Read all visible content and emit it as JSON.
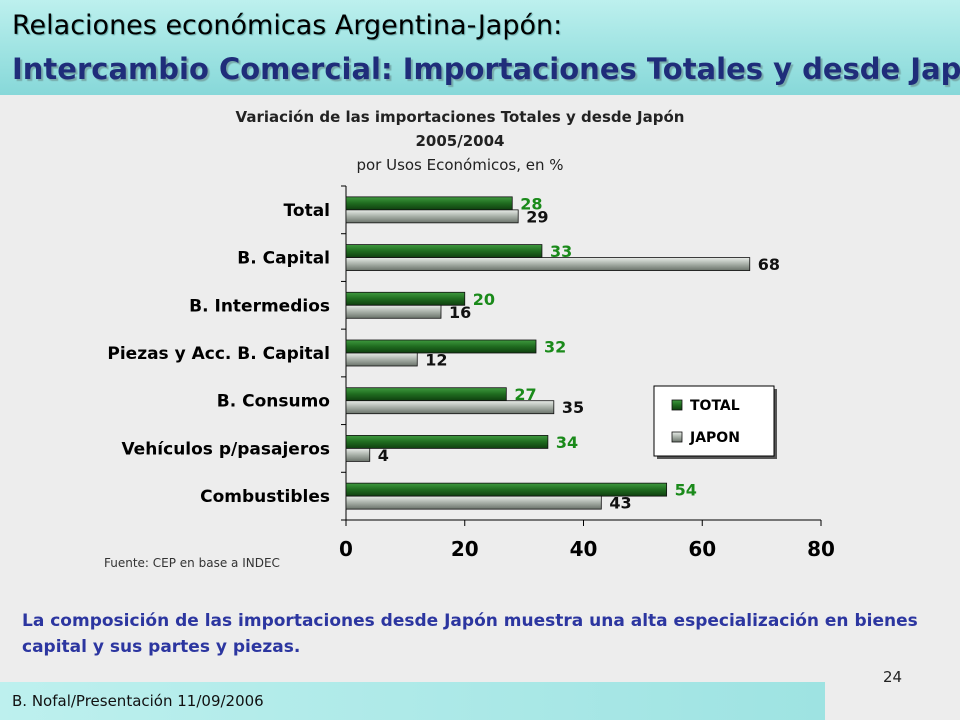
{
  "slide": {
    "title": "Relaciones económicas Argentina-Japón:",
    "subtitle": "Intercambio Comercial: Importaciones Totales y desde Japón",
    "source": "Fuente: CEP en base a INDEC",
    "body": "La composición de las importaciones desde Japón muestra una alta especialización en bienes capital y sus partes y piezas.",
    "page_number": "24",
    "footer": "B. Nofal/Presentación 11/09/2006"
  },
  "chart_data": {
    "type": "bar",
    "orientation": "horizontal",
    "title": "Variación de las importaciones Totales y desde Japón",
    "title_line2": "2005/2004",
    "subtitle": "por Usos Económicos, en %",
    "categories": [
      "Total",
      "B. Capital",
      "B. Intermedios",
      "Piezas y Acc. B. Capital",
      "B. Consumo",
      "Vehículos p/pasajeros",
      "Combustibles"
    ],
    "series": [
      {
        "name": "TOTAL",
        "values": [
          28,
          33,
          20,
          32,
          27,
          34,
          54
        ],
        "color": "#1f6b1f",
        "label_color": "#1a8a1a"
      },
      {
        "name": "JAPON",
        "values": [
          29,
          68,
          16,
          12,
          35,
          4,
          43
        ],
        "color": "#a8b0a8",
        "label_color": "#111111"
      }
    ],
    "xlim": [
      0,
      80
    ],
    "xticks": [
      "0",
      "20",
      "40",
      "60",
      "80"
    ],
    "legend": "inside-right",
    "grid": false
  }
}
